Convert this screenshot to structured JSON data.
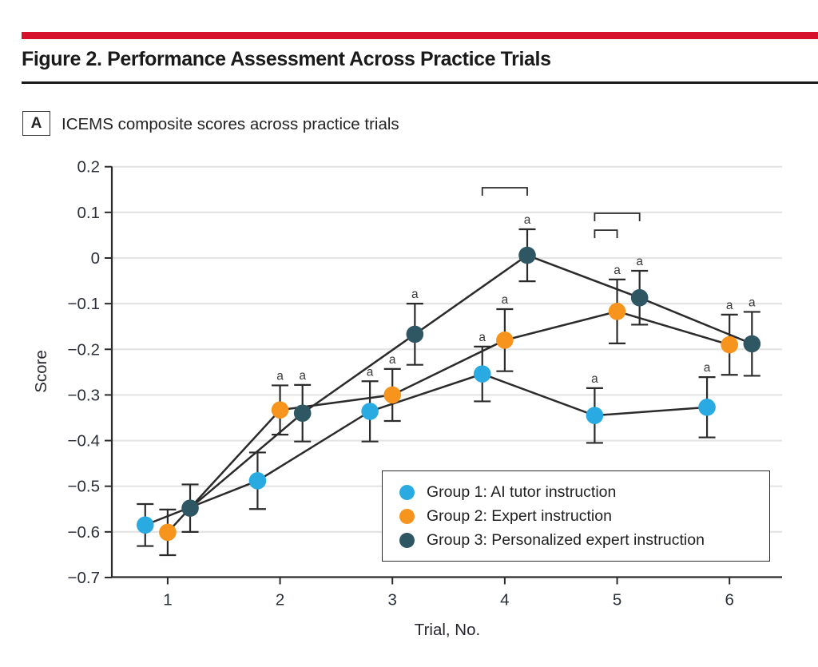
{
  "page": {
    "figure_title": "Figure 2. Performance Assessment Across Practice Trials",
    "panel_label": "A",
    "panel_title": "ICEMS composite scores across practice trials",
    "accent_red": "#D6112B"
  },
  "chart_data": {
    "type": "line",
    "title": "ICEMS composite scores across practice trials",
    "xlabel": "Trial, No.",
    "ylabel": "Score",
    "xlim": [
      0.5,
      6.7
    ],
    "ylim": [
      -0.7,
      0.2
    ],
    "grid": true,
    "legend_position": "lower right",
    "significance_marker": "a",
    "x_ticks": [
      1,
      2,
      3,
      4,
      5,
      6
    ],
    "x_tick_labels": [
      "1",
      "2",
      "3",
      "4",
      "5",
      "6"
    ],
    "y_ticks": [
      0.2,
      0.1,
      0,
      -0.1,
      -0.2,
      -0.3,
      -0.4,
      -0.5,
      -0.6,
      -0.7
    ],
    "y_tick_labels": [
      "0.2",
      "0.1",
      "0",
      "−0.1",
      "−0.2",
      "−0.3",
      "−0.4",
      "−0.5",
      "−0.6",
      "−0.7"
    ],
    "categories": [
      1,
      2,
      3,
      4,
      5,
      6
    ],
    "series": [
      {
        "name": "Group 1: AI tutor instruction",
        "color": "#29ABE2",
        "x_offset": -0.2,
        "values": [
          -0.585,
          -0.488,
          -0.336,
          -0.254,
          -0.345,
          -0.327
        ],
        "err": [
          0.046,
          0.062,
          0.066,
          0.06,
          0.06,
          0.066
        ],
        "sig": [
          false,
          false,
          true,
          true,
          true,
          true
        ]
      },
      {
        "name": "Group 2: Expert instruction",
        "color": "#F7941D",
        "x_offset": 0,
        "values": [
          -0.601,
          -0.333,
          -0.3,
          -0.18,
          -0.117,
          -0.19
        ],
        "err": [
          0.05,
          0.054,
          0.057,
          0.068,
          0.07,
          0.066
        ],
        "sig": [
          false,
          true,
          true,
          true,
          true,
          true
        ]
      },
      {
        "name": "Group 3: Personalized expert instruction",
        "color": "#2E5663",
        "x_offset": 0.2,
        "values": [
          -0.548,
          -0.34,
          -0.167,
          0.006,
          -0.087,
          -0.188
        ],
        "err": [
          0.052,
          0.062,
          0.067,
          0.057,
          0.059,
          0.07
        ],
        "sig": [
          false,
          true,
          true,
          true,
          true,
          true
        ]
      }
    ],
    "comparison_brackets": [
      {
        "x1": 3.8,
        "x2": 4.2,
        "y": 0.154
      },
      {
        "x1": 4.8,
        "x2": 5.2,
        "y": 0.098
      },
      {
        "x1": 4.8,
        "x2": 5.0,
        "y": 0.061
      }
    ]
  }
}
